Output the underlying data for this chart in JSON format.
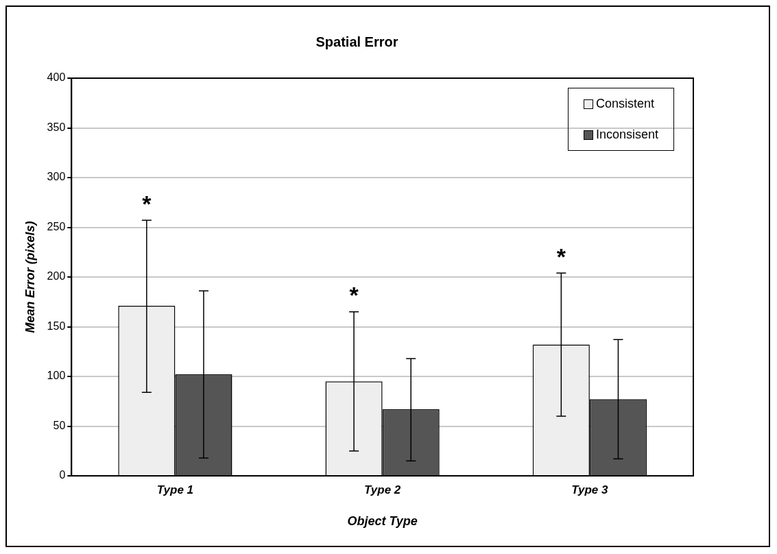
{
  "chart_data": {
    "type": "bar",
    "title": "Spatial Error",
    "xlabel": "Object Type",
    "ylabel": "Mean Error (pixels)",
    "categories": [
      "Type 1",
      "Type 2",
      "Type 3"
    ],
    "series": [
      {
        "name": "Consistent",
        "color": "#eeeeee",
        "values": [
          171,
          95,
          132
        ],
        "errors": [
          [
            84,
            257
          ],
          [
            25,
            165
          ],
          [
            60,
            204
          ]
        ]
      },
      {
        "name": "Inconsisent",
        "color": "#555555",
        "values": [
          102,
          67,
          77
        ],
        "errors": [
          [
            18,
            186
          ],
          [
            15,
            118
          ],
          [
            17,
            137
          ]
        ]
      }
    ],
    "ylim": [
      0,
      400
    ],
    "yticks": [
      0,
      50,
      100,
      150,
      200,
      250,
      300,
      350,
      400
    ],
    "grid": "y",
    "legend": "top right",
    "annotations": [
      "*",
      "*",
      "*"
    ]
  }
}
